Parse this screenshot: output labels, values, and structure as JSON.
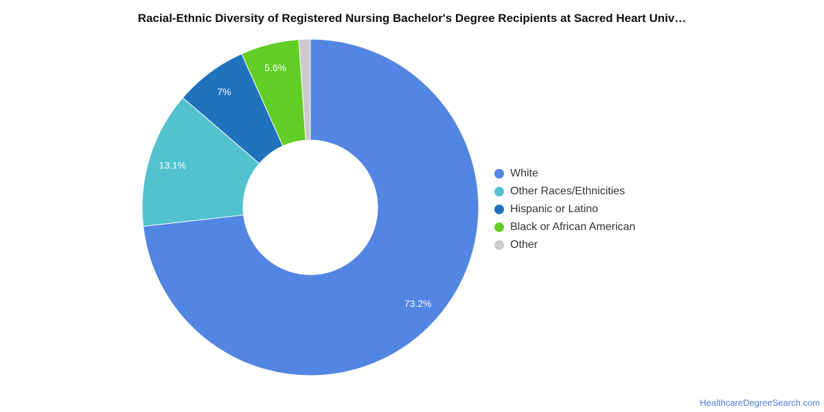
{
  "chart_data": {
    "type": "pie",
    "title": "Racial-Ethnic Diversity of Registered Nursing Bachelor's Degree Recipients at Sacred Heart Univ…",
    "categories": [
      "White",
      "Other Races/Ethnicities",
      "Hispanic or Latino",
      "Black or African American",
      "Other"
    ],
    "values": [
      73.2,
      13.1,
      7.0,
      5.6,
      1.1
    ],
    "data_labels": [
      "73.2%",
      "13.1%",
      "7%",
      "5.6%",
      ""
    ],
    "colors": [
      "#5385e2",
      "#52c2cf",
      "#1f73bd",
      "#62ce25",
      "#cccccc"
    ],
    "donut": true,
    "legend_position": "right"
  },
  "source": {
    "label": "HealthcareDegreeSearch.com"
  }
}
